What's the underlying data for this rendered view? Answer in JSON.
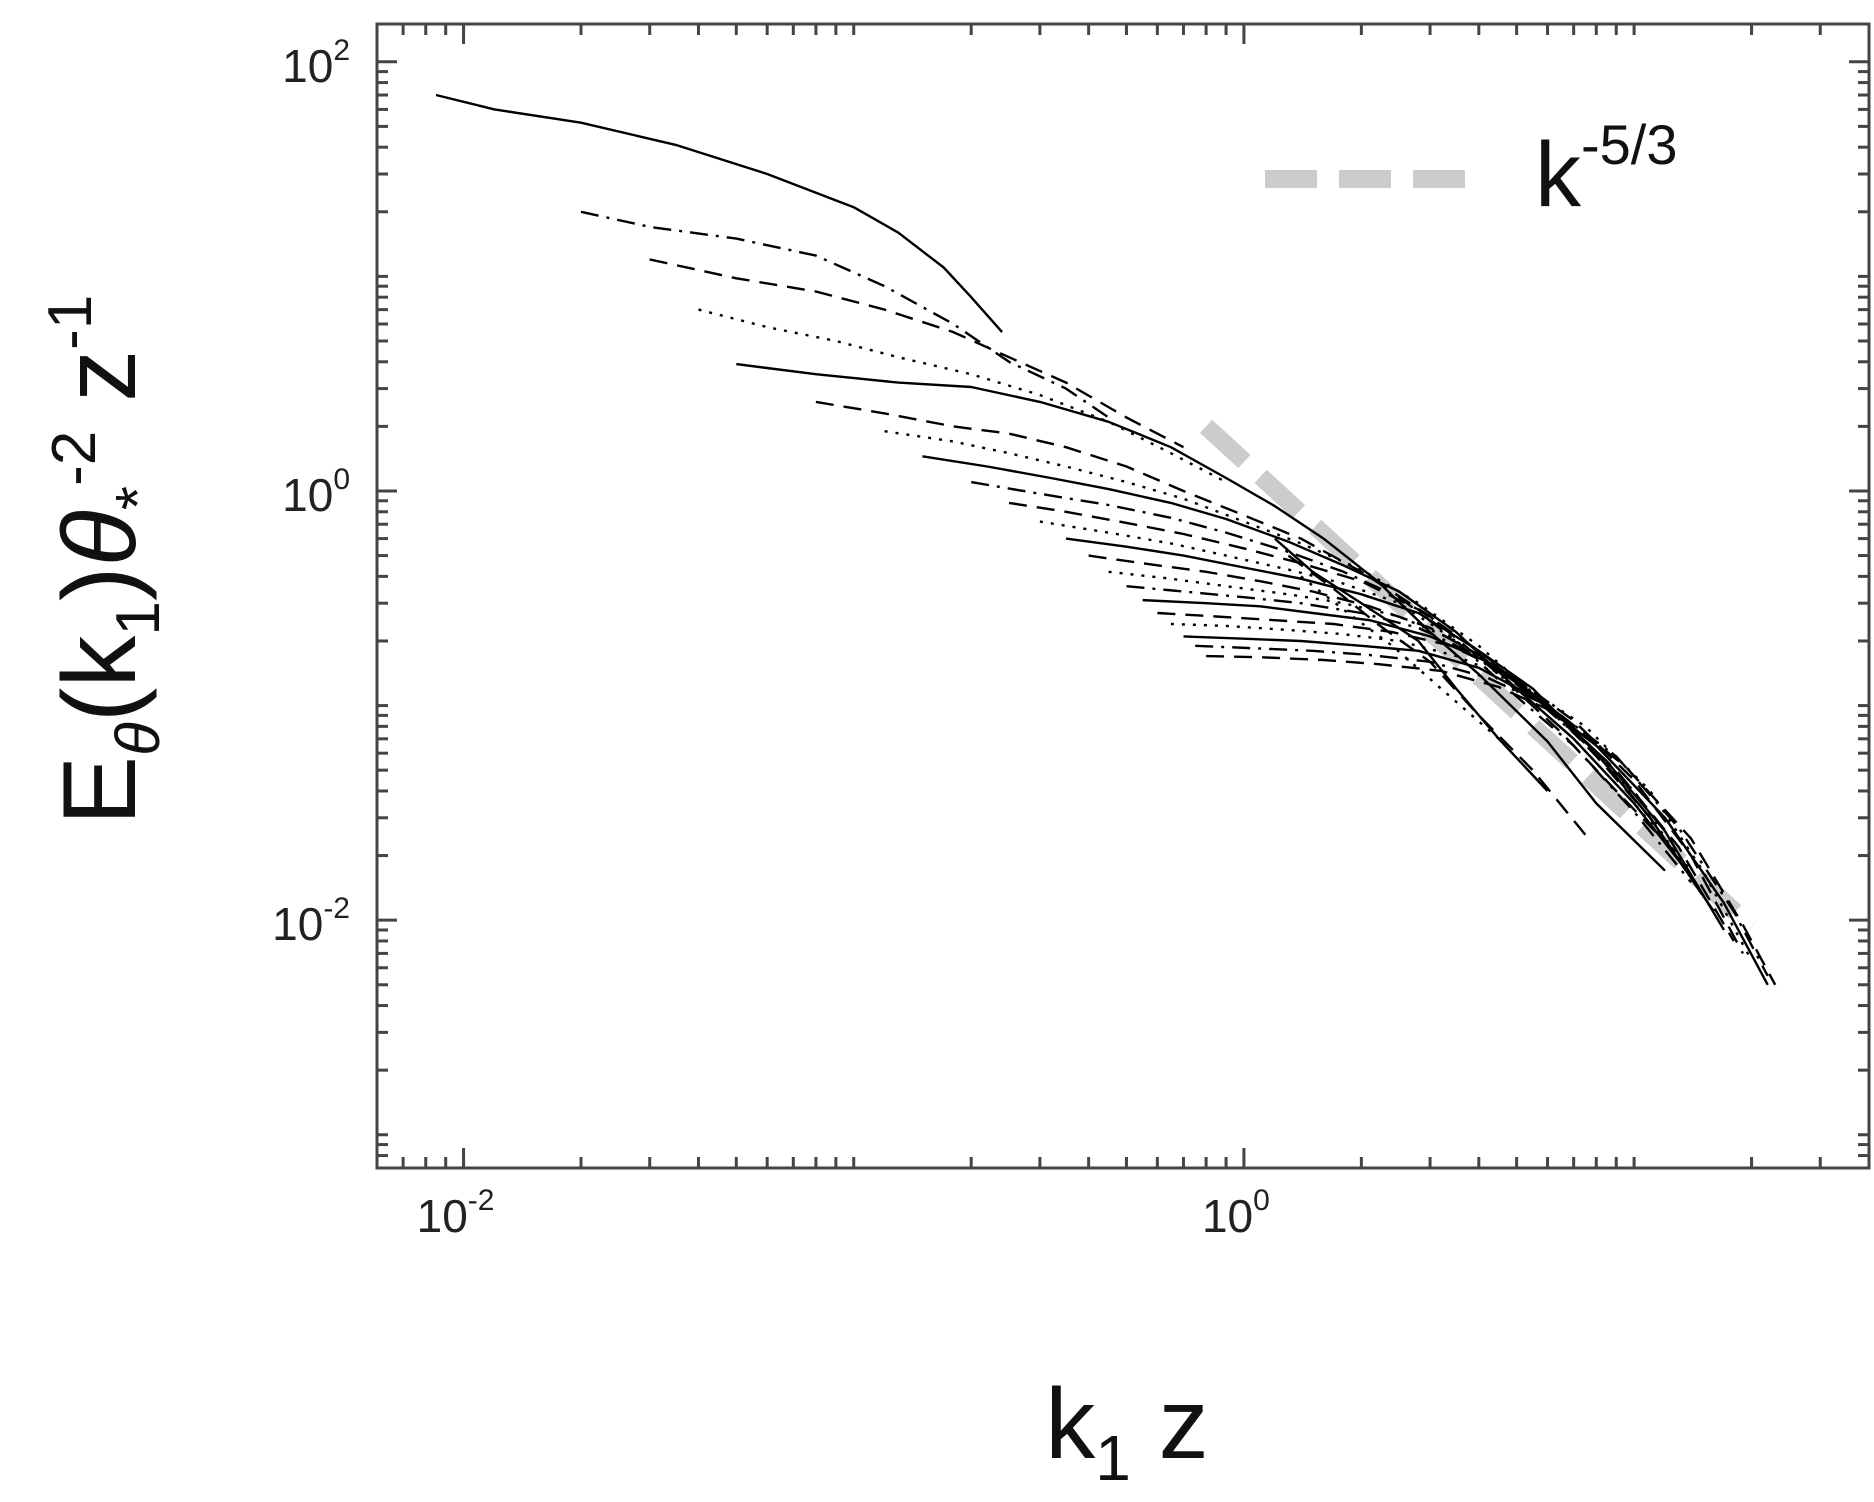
{
  "chart_data": {
    "type": "line",
    "title": "",
    "xlabel": {
      "main": "k",
      "sub": "1",
      "tail": " z"
    },
    "ylabel": {
      "E": "E",
      "theta": "θ",
      "k": "(k",
      "k_sub": "1",
      "close": ")",
      "theta2": "θ",
      "star": "*",
      "exp1": "-2",
      "z": " z",
      "exp2": "-1"
    },
    "x_scale": "log",
    "y_scale": "log",
    "xlim": [
      0.006,
      40
    ],
    "ylim": [
      0.0007,
      150
    ],
    "x_ticks": [
      {
        "value": 0.01,
        "base": "10",
        "exp": "-2"
      },
      {
        "value": 1,
        "base": "10",
        "exp": "0"
      }
    ],
    "y_ticks": [
      {
        "value": 100,
        "base": "10",
        "exp": "2"
      },
      {
        "value": 1,
        "base": "10",
        "exp": "0"
      },
      {
        "value": 0.01,
        "base": "10",
        "exp": "-2"
      }
    ],
    "grid": false,
    "legend": {
      "position": "top-right",
      "entries": [
        {
          "label_base": "k",
          "label_exp": "-5/3",
          "color": "#cccccc",
          "style": "dashed"
        }
      ]
    },
    "reference_line": {
      "name": "k-5/3",
      "slope": -1.6667,
      "x": [
        0.8,
        20
      ],
      "y": [
        2.0,
        0.0093
      ],
      "color": "#cccccc"
    },
    "series_color": "#000000",
    "series": [
      {
        "style": "solid",
        "x": [
          0.0085,
          0.012,
          0.02,
          0.035,
          0.06,
          0.1,
          0.13,
          0.17,
          0.2,
          0.24
        ],
        "y": [
          70,
          60,
          52,
          41,
          30,
          21,
          16,
          11,
          8,
          5.5
        ]
      },
      {
        "style": "dashdot",
        "x": [
          0.02,
          0.03,
          0.05,
          0.08,
          0.12,
          0.18,
          0.25,
          0.35,
          0.45
        ],
        "y": [
          20,
          17,
          15,
          12.5,
          9,
          6,
          4,
          3,
          2.2
        ]
      },
      {
        "style": "dashed",
        "x": [
          0.03,
          0.05,
          0.08,
          0.12,
          0.18,
          0.25,
          0.35,
          0.5,
          0.7
        ],
        "y": [
          12,
          9.8,
          8.5,
          7,
          5.5,
          4.2,
          3.2,
          2.2,
          1.6
        ]
      },
      {
        "style": "dotted",
        "x": [
          0.04,
          0.06,
          0.09,
          0.13,
          0.2,
          0.3,
          0.45,
          0.65,
          0.9
        ],
        "y": [
          7,
          5.8,
          5,
          4.2,
          3.5,
          2.8,
          2.1,
          1.5,
          1.1
        ]
      },
      {
        "style": "solid",
        "x": [
          0.05,
          0.08,
          0.13,
          0.2,
          0.3,
          0.45,
          0.65,
          0.9,
          1.2,
          1.6,
          2.2,
          3.0,
          4.0,
          6.0,
          8.0,
          12.0
        ],
        "y": [
          3.9,
          3.5,
          3.2,
          3.05,
          2.6,
          2.1,
          1.6,
          1.15,
          0.85,
          0.6,
          0.38,
          0.22,
          0.14,
          0.068,
          0.035,
          0.017
        ]
      },
      {
        "style": "dashed",
        "x": [
          0.08,
          0.12,
          0.18,
          0.25,
          0.35,
          0.5,
          0.7,
          1.0,
          1.4,
          2.0,
          3.0,
          4.5,
          6.5,
          9.0,
          13.0
        ],
        "y": [
          2.6,
          2.3,
          2.0,
          1.85,
          1.6,
          1.3,
          1.0,
          0.77,
          0.6,
          0.42,
          0.26,
          0.14,
          0.075,
          0.04,
          0.02
        ]
      },
      {
        "style": "dotted",
        "x": [
          0.12,
          0.18,
          0.25,
          0.35,
          0.5,
          0.7,
          1.0,
          1.4,
          2.0,
          2.8,
          4.0,
          6.0,
          8.0,
          11.0
        ],
        "y": [
          1.9,
          1.7,
          1.5,
          1.3,
          1.1,
          0.92,
          0.72,
          0.57,
          0.43,
          0.3,
          0.19,
          0.1,
          0.06,
          0.032
        ]
      },
      {
        "style": "solid",
        "x": [
          0.15,
          0.22,
          0.32,
          0.45,
          0.65,
          0.9,
          1.3,
          1.8,
          2.5,
          3.5,
          5.0,
          7.0,
          10.0,
          14.0
        ],
        "y": [
          1.45,
          1.3,
          1.15,
          1.02,
          0.88,
          0.74,
          0.58,
          0.45,
          0.34,
          0.22,
          0.12,
          0.07,
          0.035,
          0.016
        ]
      },
      {
        "style": "dashdot",
        "x": [
          0.2,
          0.3,
          0.45,
          0.65,
          0.9,
          1.3,
          1.8,
          2.5,
          3.5,
          5.0,
          7.0,
          10.0,
          14.0
        ],
        "y": [
          1.1,
          0.97,
          0.86,
          0.75,
          0.64,
          0.52,
          0.42,
          0.32,
          0.2,
          0.11,
          0.065,
          0.032,
          0.015
        ]
      },
      {
        "style": "dashed",
        "x": [
          0.25,
          0.35,
          0.5,
          0.7,
          1.0,
          1.4,
          2.0,
          2.8,
          4.0,
          6.0,
          8.0,
          11.0,
          15.0
        ],
        "y": [
          0.88,
          0.8,
          0.71,
          0.63,
          0.54,
          0.46,
          0.38,
          0.28,
          0.18,
          0.1,
          0.058,
          0.03,
          0.013
        ]
      },
      {
        "style": "dotted",
        "x": [
          0.3,
          0.45,
          0.65,
          0.9,
          1.3,
          1.8,
          2.5,
          3.5,
          5.0,
          7.0,
          10.0,
          14.0
        ],
        "y": [
          0.72,
          0.64,
          0.57,
          0.5,
          0.43,
          0.37,
          0.3,
          0.2,
          0.12,
          0.07,
          0.035,
          0.017
        ]
      },
      {
        "style": "solid",
        "x": [
          0.35,
          0.5,
          0.7,
          1.0,
          1.4,
          2.0,
          2.8,
          4.0,
          5.5,
          8.0,
          11.0,
          16.0
        ],
        "y": [
          0.6,
          0.55,
          0.5,
          0.44,
          0.39,
          0.33,
          0.27,
          0.18,
          0.12,
          0.06,
          0.03,
          0.011
        ]
      },
      {
        "style": "dashed",
        "x": [
          0.4,
          0.55,
          0.8,
          1.1,
          1.5,
          2.1,
          3.0,
          4.3,
          6.0,
          9.0,
          13.0,
          18.0
        ],
        "y": [
          0.5,
          0.46,
          0.42,
          0.38,
          0.34,
          0.29,
          0.23,
          0.16,
          0.1,
          0.05,
          0.022,
          0.008
        ]
      },
      {
        "style": "dotted",
        "x": [
          0.45,
          0.65,
          0.9,
          1.3,
          1.8,
          2.5,
          3.5,
          5.0,
          7.0,
          10.0,
          14.0
        ],
        "y": [
          0.42,
          0.39,
          0.36,
          0.33,
          0.3,
          0.26,
          0.2,
          0.13,
          0.075,
          0.04,
          0.016
        ]
      },
      {
        "style": "dashdot",
        "x": [
          0.5,
          0.7,
          1.0,
          1.4,
          2.0,
          2.8,
          4.0,
          5.5,
          8.0,
          11.0,
          16.0
        ],
        "y": [
          0.36,
          0.34,
          0.32,
          0.3,
          0.27,
          0.23,
          0.17,
          0.11,
          0.06,
          0.03,
          0.011
        ]
      },
      {
        "style": "solid",
        "x": [
          0.55,
          0.8,
          1.1,
          1.5,
          2.1,
          3.0,
          4.2,
          6.0,
          8.5,
          12.0,
          17.0
        ],
        "y": [
          0.31,
          0.3,
          0.29,
          0.27,
          0.25,
          0.21,
          0.16,
          0.1,
          0.055,
          0.026,
          0.009
        ]
      },
      {
        "style": "dashed",
        "x": [
          0.6,
          0.85,
          1.2,
          1.7,
          2.4,
          3.4,
          4.8,
          7.0,
          10.0,
          14.0,
          19.0
        ],
        "y": [
          0.27,
          0.26,
          0.25,
          0.24,
          0.22,
          0.19,
          0.14,
          0.085,
          0.045,
          0.02,
          0.007
        ]
      },
      {
        "style": "dotted",
        "x": [
          0.65,
          0.9,
          1.3,
          1.8,
          2.5,
          3.5,
          5.0,
          7.5,
          11.0,
          15.0,
          20.0
        ],
        "y": [
          0.24,
          0.235,
          0.225,
          0.215,
          0.2,
          0.17,
          0.13,
          0.08,
          0.04,
          0.017,
          0.0065
        ]
      },
      {
        "style": "solid",
        "x": [
          0.7,
          1.0,
          1.4,
          2.0,
          2.8,
          4.0,
          5.5,
          8.0,
          12.0,
          17.0,
          22.0
        ],
        "y": [
          0.21,
          0.205,
          0.2,
          0.19,
          0.18,
          0.15,
          0.11,
          0.065,
          0.03,
          0.012,
          0.005
        ]
      },
      {
        "style": "dashdot",
        "x": [
          0.75,
          1.05,
          1.5,
          2.1,
          3.0,
          4.2,
          6.0,
          9.0,
          13.0,
          18.0,
          22.0
        ],
        "y": [
          0.19,
          0.185,
          0.18,
          0.172,
          0.16,
          0.135,
          0.1,
          0.058,
          0.027,
          0.011,
          0.0055
        ]
      },
      {
        "style": "dashed",
        "x": [
          0.8,
          1.1,
          1.6,
          2.2,
          3.2,
          4.5,
          6.5,
          9.5,
          14.0,
          19.0,
          23.0
        ],
        "y": [
          0.17,
          0.168,
          0.163,
          0.156,
          0.145,
          0.122,
          0.09,
          0.052,
          0.024,
          0.0095,
          0.005
        ]
      },
      {
        "style": "solid",
        "x": [
          1.2,
          1.5,
          2.0,
          2.8,
          3.5,
          4.5,
          6.0
        ],
        "y": [
          0.6,
          0.42,
          0.3,
          0.2,
          0.12,
          0.07,
          0.04
        ]
      },
      {
        "style": "dashed",
        "x": [
          1.3,
          1.7,
          2.2,
          3.0,
          4.0,
          5.5,
          7.5
        ],
        "y": [
          0.5,
          0.35,
          0.24,
          0.16,
          0.09,
          0.05,
          0.025
        ]
      },
      {
        "style": "dotted",
        "x": [
          1.4,
          1.8,
          2.4,
          3.2,
          4.5
        ],
        "y": [
          0.4,
          0.28,
          0.19,
          0.12,
          0.07
        ]
      }
    ]
  }
}
